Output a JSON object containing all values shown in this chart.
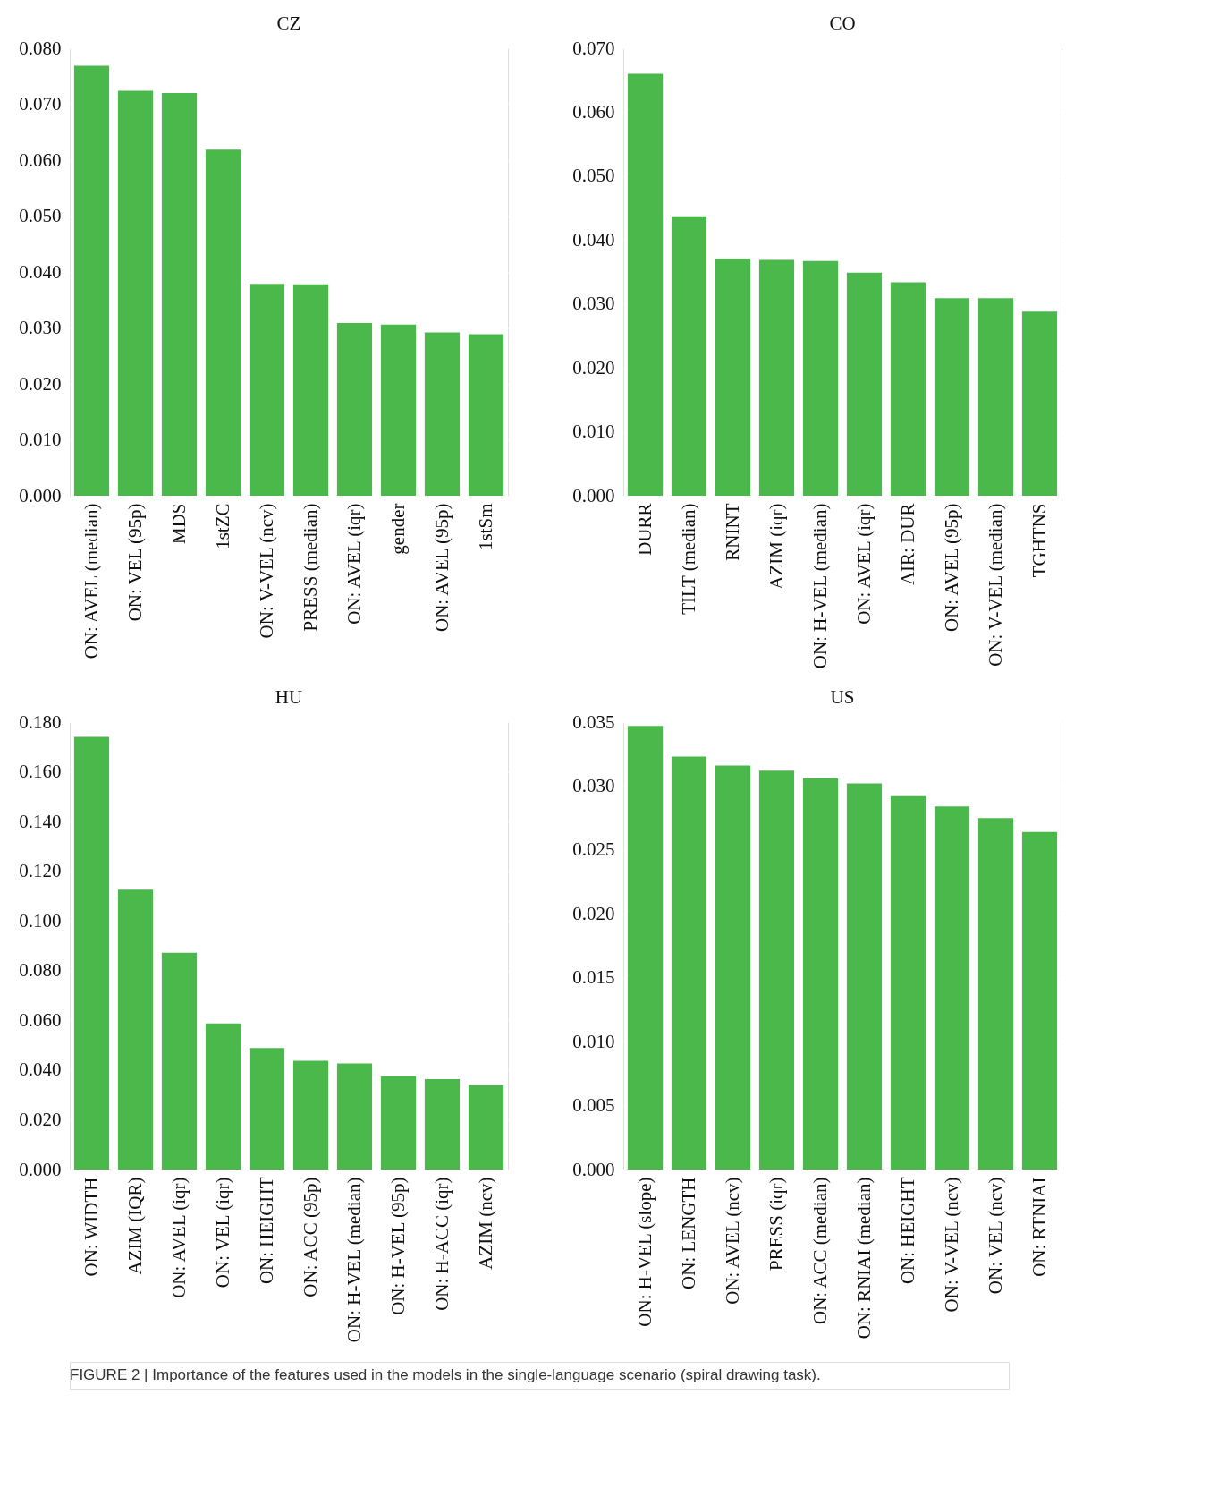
{
  "chart_data": [
    {
      "type": "bar",
      "title": "CZ",
      "categories": [
        "ON: AVEL (median)",
        "ON: VEL (95p)",
        "MDS",
        "1stZC",
        "ON: V-VEL (ncv)",
        "PRESS (median)",
        "ON: AVEL (iqr)",
        "gender",
        "ON: AVEL (95p)",
        "1stSm"
      ],
      "values": [
        0.0769,
        0.0724,
        0.072,
        0.0619,
        0.0379,
        0.0378,
        0.0309,
        0.0306,
        0.0292,
        0.0289
      ],
      "color": "#4ab84a",
      "ylim": [
        0,
        0.08
      ],
      "yticks": [
        {
          "value": 0,
          "label": "0.000"
        },
        {
          "value": 0.01,
          "label": "0.010"
        },
        {
          "value": 0.02,
          "label": "0.020"
        },
        {
          "value": 0.03,
          "label": "0.030"
        },
        {
          "value": 0.04,
          "label": "0.040"
        },
        {
          "value": 0.05,
          "label": "0.050"
        },
        {
          "value": 0.06,
          "label": "0.060"
        },
        {
          "value": 0.07,
          "label": "0.070"
        },
        {
          "value": 0.08,
          "label": "0.080"
        }
      ],
      "grid": "y"
    },
    {
      "type": "bar",
      "title": "CO",
      "categories": [
        "DURR",
        "TILT (median)",
        "RNINT",
        "AZIM (iqr)",
        "ON: H-VEL (median)",
        "ON: AVEL (iqr)",
        "AIR: DUR",
        "ON: AVEL (95p)",
        "ON: V-VEL (median)",
        "TGHTNS"
      ],
      "values": [
        0.066,
        0.0437,
        0.0371,
        0.0369,
        0.0367,
        0.0349,
        0.0334,
        0.0309,
        0.0309,
        0.0288
      ],
      "color": "#4ab84a",
      "ylim": [
        0,
        0.07
      ],
      "yticks": [
        {
          "value": 0,
          "label": "0.000"
        },
        {
          "value": 0.01,
          "label": "0.010"
        },
        {
          "value": 0.02,
          "label": "0.020"
        },
        {
          "value": 0.03,
          "label": "0.030"
        },
        {
          "value": 0.04,
          "label": "0.040"
        },
        {
          "value": 0.05,
          "label": "0.050"
        },
        {
          "value": 0.06,
          "label": "0.060"
        },
        {
          "value": 0.07,
          "label": "0.070"
        }
      ],
      "grid": "y"
    },
    {
      "type": "bar",
      "title": "HU",
      "categories": [
        "ON: WIDTH",
        "AZIM (IQR)",
        "ON: AVEL (iqr)",
        "ON: VEL (iqr)",
        "ON: HEIGHT",
        "ON: ACC (95p)",
        "ON: H-VEL (median)",
        "ON: H-VEL (95p)",
        "ON: H-ACC (iqr)",
        "AZIM (ncv)"
      ],
      "values": [
        0.1741,
        0.1126,
        0.0872,
        0.0588,
        0.0489,
        0.0437,
        0.0427,
        0.0375,
        0.0364,
        0.0338
      ],
      "color": "#4ab84a",
      "ylim": [
        0,
        0.18
      ],
      "yticks": [
        {
          "value": 0,
          "label": "0.000"
        },
        {
          "value": 0.02,
          "label": "0.020"
        },
        {
          "value": 0.04,
          "label": "0.040"
        },
        {
          "value": 0.06,
          "label": "0.060"
        },
        {
          "value": 0.08,
          "label": "0.080"
        },
        {
          "value": 0.1,
          "label": "0.100"
        },
        {
          "value": 0.12,
          "label": "0.120"
        },
        {
          "value": 0.14,
          "label": "0.140"
        },
        {
          "value": 0.16,
          "label": "0.160"
        },
        {
          "value": 0.18,
          "label": "0.180"
        }
      ],
      "grid": "y"
    },
    {
      "type": "bar",
      "title": "US",
      "categories": [
        "ON: H-VEL (slope)",
        "ON: LENGTH",
        "ON: AVEL (ncv)",
        "PRESS (iqr)",
        "ON: ACC (median)",
        "ON: RNIAI (median)",
        "ON: HEIGHT",
        "ON: V-VEL (ncv)",
        "ON: VEL (ncv)",
        "ON: RTNIAI"
      ],
      "values": [
        0.0347,
        0.0323,
        0.0316,
        0.0312,
        0.0306,
        0.0302,
        0.0292,
        0.0284,
        0.0275,
        0.0264
      ],
      "color": "#4ab84a",
      "ylim": [
        0,
        0.035
      ],
      "yticks": [
        {
          "value": 0,
          "label": "0.000"
        },
        {
          "value": 0.005,
          "label": "0.005"
        },
        {
          "value": 0.01,
          "label": "0.010"
        },
        {
          "value": 0.015,
          "label": "0.015"
        },
        {
          "value": 0.02,
          "label": "0.020"
        },
        {
          "value": 0.025,
          "label": "0.025"
        },
        {
          "value": 0.03,
          "label": "0.030"
        },
        {
          "value": 0.035,
          "label": "0.035"
        }
      ],
      "grid": "y",
      "annotations": [
        "FIGURE 2 | Importance of the features used in the models in the single-language scenario (spiral drawing task)."
      ]
    }
  ]
}
